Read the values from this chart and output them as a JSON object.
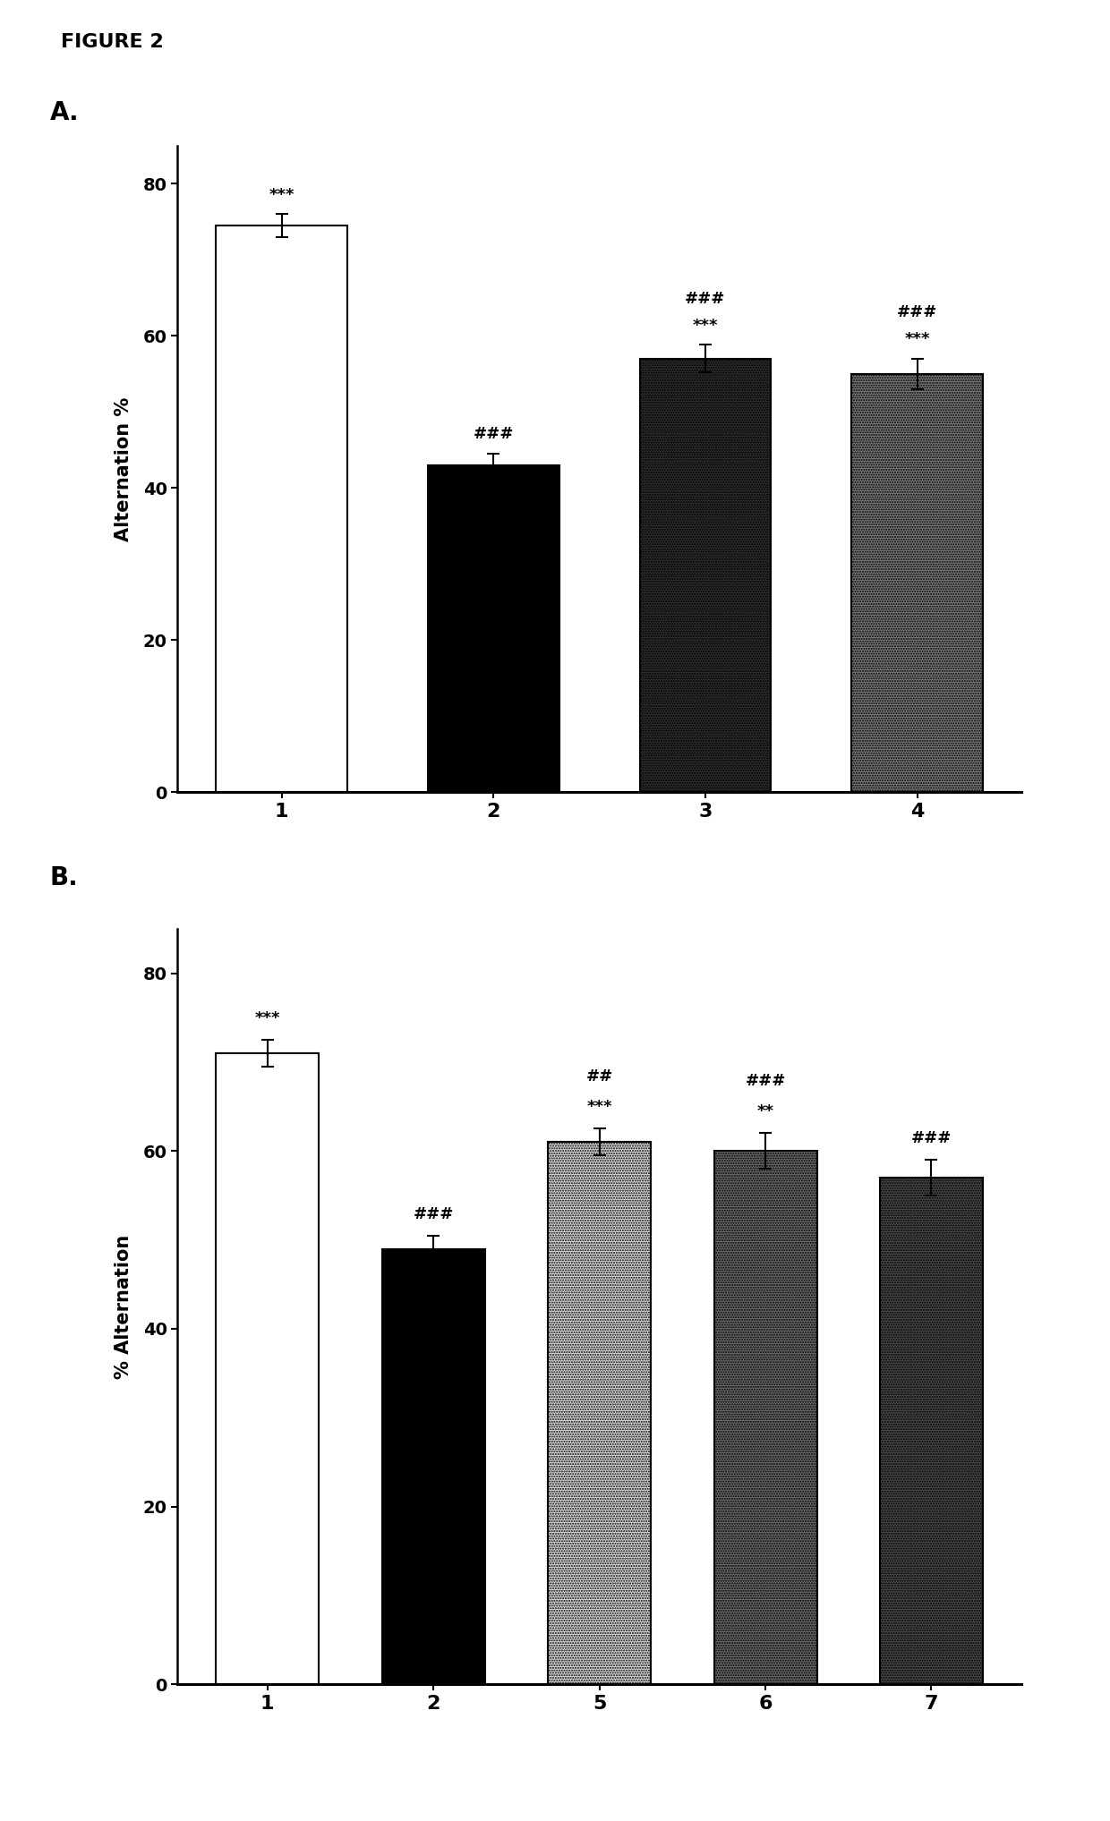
{
  "figure_title": "FIGURE 2",
  "panel_A": {
    "label": "A.",
    "categories": [
      "1",
      "2",
      "3",
      "4"
    ],
    "values": [
      74.5,
      43.0,
      57.0,
      55.0
    ],
    "errors": [
      1.5,
      1.5,
      1.8,
      2.0
    ],
    "colors": [
      "#ffffff",
      "#000000",
      "#2d2d2d",
      "#7a7a7a"
    ],
    "hatches": [
      "",
      "",
      "......",
      "......"
    ],
    "ylabel": "Alternation %",
    "ylim": [
      0,
      85
    ],
    "yticks": [
      0,
      20,
      40,
      60,
      80
    ]
  },
  "panel_B": {
    "label": "B.",
    "categories": [
      "1",
      "2",
      "5",
      "6",
      "7"
    ],
    "values": [
      71.0,
      49.0,
      61.0,
      60.0,
      57.0
    ],
    "errors": [
      1.5,
      1.5,
      1.5,
      2.0,
      2.0
    ],
    "colors": [
      "#ffffff",
      "#000000",
      "#d8d8d8",
      "#6a6a6a",
      "#484848"
    ],
    "hatches": [
      "",
      "",
      "......",
      "......",
      "......"
    ],
    "ylabel": "% Alternation",
    "ylim": [
      0,
      85
    ],
    "yticks": [
      0,
      20,
      40,
      60,
      80
    ]
  }
}
